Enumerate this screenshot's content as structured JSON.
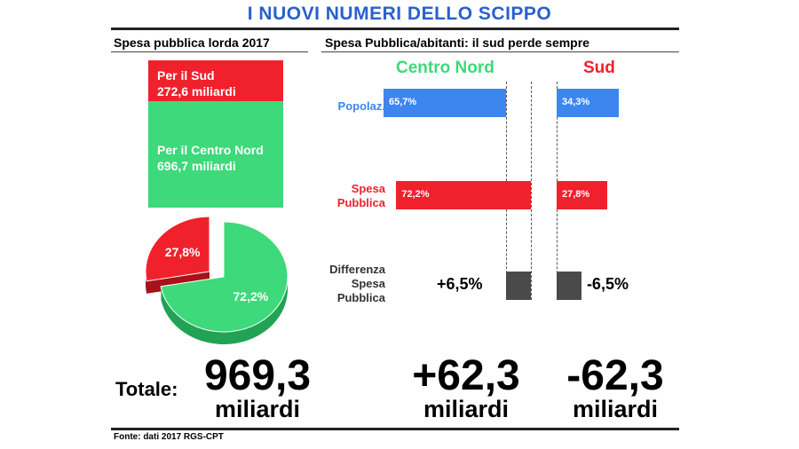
{
  "title": "I NUOVI NUMERI DELLO SCIPPO",
  "left": {
    "subtitle": "Spesa pubblica lorda 2017",
    "sud_box": {
      "line1": "Per il Sud",
      "line2": "272,6 miliardi"
    },
    "cn_box": {
      "line1": "Per il Centro Nord",
      "line2": "696,7 miliardi"
    },
    "total_label": "Totale:",
    "total_value": "969,3",
    "total_unit": "miliardi"
  },
  "right": {
    "subtitle": "Spesa Pubblica/abitanti: il sud perde sempre",
    "col_cn": "Centro Nord",
    "col_sud": "Sud",
    "rows": {
      "popolaz": "Popolaz.",
      "spesa_1": "Spesa",
      "spesa_2": "Pubblica",
      "diff_1": "Differenza",
      "diff_2": "Spesa",
      "diff_3": "Pubblica"
    },
    "cn_total": "+62,3",
    "sud_total": "-62,3",
    "unit": "miliardi"
  },
  "source": "Fonte: dati 2017 RGS-CPT",
  "colors": {
    "blue": "#3d86f0",
    "red": "#f0212c",
    "green": "#3dd97a",
    "gray": "#4a4a4a",
    "title": "#2a5fce"
  },
  "chart_data": [
    {
      "type": "pie",
      "categories": [
        "Sud",
        "Centro Nord"
      ],
      "values": [
        27.8,
        72.2
      ],
      "labels": [
        "27,8%",
        "72,2%"
      ]
    },
    {
      "type": "bar",
      "categories": [
        "Popolaz.",
        "Spesa Pubblica",
        "Differenza Spesa Pubblica"
      ],
      "series": [
        {
          "name": "Centro Nord",
          "values": [
            65.7,
            72.2,
            6.5
          ],
          "labels": [
            "65,7%",
            "72,2%",
            "+6,5%"
          ]
        },
        {
          "name": "Sud",
          "values": [
            34.3,
            27.8,
            -6.5
          ],
          "labels": [
            "34,3%",
            "27,8%",
            "-6,5%"
          ]
        }
      ]
    }
  ]
}
